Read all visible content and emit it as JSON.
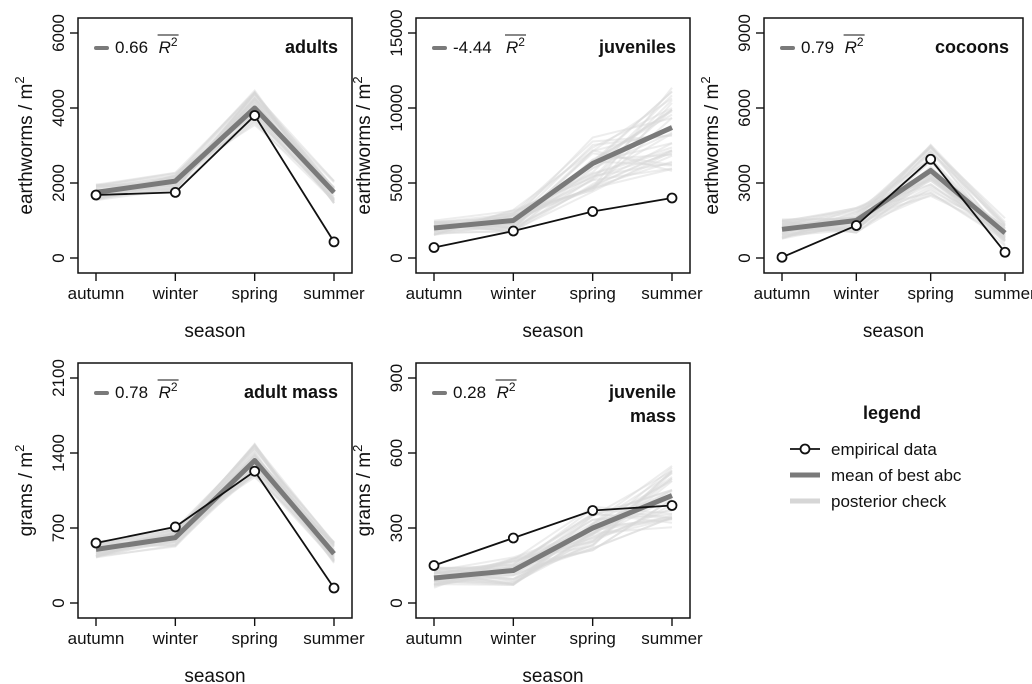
{
  "legend": {
    "title": "legend",
    "items": [
      {
        "label": "empirical data",
        "style": "empirical"
      },
      {
        "label": "mean of best abc",
        "style": "mean"
      },
      {
        "label": "posterior check",
        "style": "posterior"
      }
    ]
  },
  "colors": {
    "empirical": "#111111",
    "mean": "#7a7a7a",
    "posterior": "#d6d6d6",
    "axis": "#111111"
  },
  "chart_data": [
    {
      "type": "line",
      "title": "adults",
      "r2_value": "0.66",
      "r2_label": "R",
      "r2_sup": "2",
      "categories": [
        "autumn",
        "winter",
        "spring",
        "summer"
      ],
      "xlabel": "season",
      "ylabel": "earthworms / m",
      "ylabel_sup": "2",
      "ylim": [
        0,
        6000
      ],
      "yticks": [
        0,
        2000,
        4000,
        6000
      ],
      "series": [
        {
          "role": "empirical",
          "values": [
            1680,
            1750,
            3800,
            430
          ]
        },
        {
          "role": "mean",
          "values": [
            1750,
            2050,
            4000,
            1750
          ]
        }
      ],
      "posterior_spread": [
        0.12,
        0.12,
        0.12,
        0.18
      ]
    },
    {
      "type": "line",
      "title": "juveniles",
      "r2_value": "-4.44",
      "r2_label": "R",
      "r2_sup": "2",
      "categories": [
        "autumn",
        "winter",
        "spring",
        "summer"
      ],
      "xlabel": "season",
      "ylabel": "earthworms / m",
      "ylabel_sup": "2",
      "ylim": [
        0,
        15000
      ],
      "yticks": [
        0,
        5000,
        10000,
        15000
      ],
      "series": [
        {
          "role": "empirical",
          "values": [
            700,
            1800,
            3100,
            4000
          ]
        },
        {
          "role": "mean",
          "values": [
            2000,
            2500,
            6300,
            8700
          ]
        }
      ],
      "posterior_spread": [
        0.25,
        0.3,
        0.3,
        0.35
      ]
    },
    {
      "type": "line",
      "title": "cocoons",
      "r2_value": "0.79",
      "r2_label": "R",
      "r2_sup": "2",
      "categories": [
        "autumn",
        "winter",
        "spring",
        "summer"
      ],
      "xlabel": "season",
      "ylabel": "earthworms / m",
      "ylabel_sup": "2",
      "ylim": [
        0,
        9000
      ],
      "yticks": [
        0,
        3000,
        6000,
        9000
      ],
      "series": [
        {
          "role": "empirical",
          "values": [
            30,
            1300,
            3950,
            230
          ]
        },
        {
          "role": "mean",
          "values": [
            1150,
            1500,
            3500,
            1000
          ]
        }
      ],
      "posterior_spread": [
        0.35,
        0.35,
        0.3,
        0.6
      ]
    },
    {
      "type": "line",
      "title": "adult mass",
      "r2_value": "0.78",
      "r2_label": "R",
      "r2_sup": "2",
      "categories": [
        "autumn",
        "winter",
        "spring",
        "summer"
      ],
      "xlabel": "season",
      "ylabel": "grams / m",
      "ylabel_sup": "2",
      "ylim": [
        0,
        2100
      ],
      "yticks": [
        0,
        700,
        1400,
        2100
      ],
      "series": [
        {
          "role": "empirical",
          "values": [
            560,
            710,
            1230,
            140
          ]
        },
        {
          "role": "mean",
          "values": [
            500,
            610,
            1330,
            460
          ]
        }
      ],
      "posterior_spread": [
        0.15,
        0.15,
        0.12,
        0.25
      ]
    },
    {
      "type": "line",
      "title": "juvenile mass",
      "title_lines": [
        "juvenile",
        "mass"
      ],
      "r2_value": "0.28",
      "r2_label": "R",
      "r2_sup": "2",
      "categories": [
        "autumn",
        "winter",
        "spring",
        "summer"
      ],
      "xlabel": "season",
      "ylabel": "grams / m",
      "ylabel_sup": "2",
      "ylim": [
        0,
        900
      ],
      "yticks": [
        0,
        300,
        600,
        900
      ],
      "series": [
        {
          "role": "empirical",
          "values": [
            150,
            260,
            370,
            390
          ]
        },
        {
          "role": "mean",
          "values": [
            100,
            130,
            300,
            430
          ]
        }
      ],
      "posterior_spread": [
        0.45,
        0.45,
        0.3,
        0.3
      ]
    }
  ]
}
